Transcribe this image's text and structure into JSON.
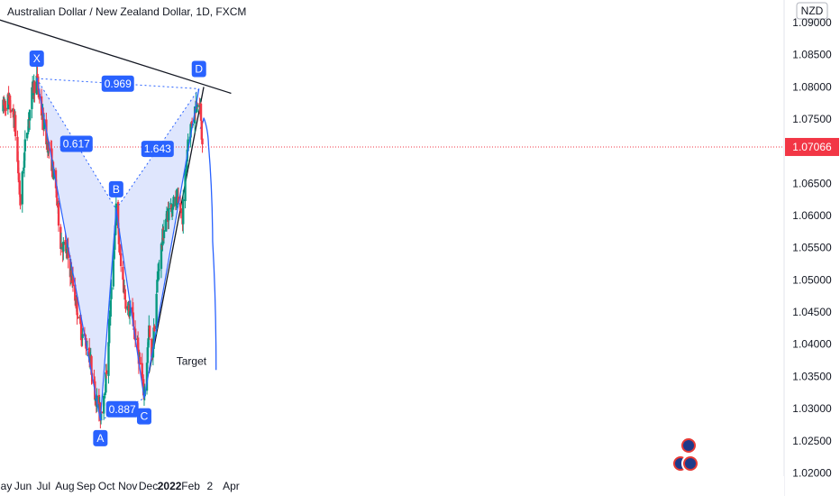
{
  "header": {
    "title": "Australian Dollar / New Zealand Dollar, 1D, FXCM",
    "currency": "NZD"
  },
  "chart_data": {
    "type": "candlestick",
    "title": "Australian Dollar / New Zealand Dollar, 1D, FXCM",
    "ylim": [
      1.0195,
      1.0935
    ],
    "xlabel": "",
    "ylabel": "NZD",
    "grid": false,
    "y_ticks": [
      "1.09000",
      "1.08500",
      "1.08000",
      "1.07500",
      "1.06500",
      "1.06000",
      "1.05500",
      "1.05000",
      "1.04500",
      "1.04000",
      "1.03500",
      "1.03000",
      "1.02500",
      "1.02000"
    ],
    "x_ticks": [
      {
        "label": "May",
        "date": "2021-05-01",
        "bold": false
      },
      {
        "label": "Jun",
        "date": "2021-06-01",
        "bold": false
      },
      {
        "label": "Jul",
        "date": "2021-07-01",
        "bold": false
      },
      {
        "label": "Aug",
        "date": "2021-08-01",
        "bold": false
      },
      {
        "label": "Sep",
        "date": "2021-09-01",
        "bold": false
      },
      {
        "label": "Oct",
        "date": "2021-10-01",
        "bold": false
      },
      {
        "label": "Nov",
        "date": "2021-11-01",
        "bold": false
      },
      {
        "label": "Dec",
        "date": "2021-12-01",
        "bold": false
      },
      {
        "label": "2022",
        "date": "2022-01-01",
        "bold": true
      },
      {
        "label": "Feb",
        "date": "2022-02-01",
        "bold": false
      },
      {
        "label": "2",
        "date": "2022-03-01",
        "bold": false
      },
      {
        "label": "Apr",
        "date": "2022-04-01",
        "bold": false
      }
    ],
    "last_price": {
      "value": 1.07066,
      "label": "1.07066",
      "color": "#f23645"
    },
    "colors": {
      "up": "#089981",
      "down": "#f23645",
      "pattern": "#2962ff",
      "fill": "#c9d6fb"
    },
    "price_path": [
      [
        "2021-05-01",
        1.0765
      ],
      [
        "2021-05-10",
        1.078
      ],
      [
        "2021-05-20",
        1.0745
      ],
      [
        "2021-05-28",
        1.062
      ],
      [
        "2021-06-05",
        1.072
      ],
      [
        "2021-06-15",
        1.0795
      ],
      [
        "2021-06-21",
        1.0812
      ],
      [
        "2021-06-28",
        1.076
      ],
      [
        "2021-07-05",
        1.072
      ],
      [
        "2021-07-12",
        1.069
      ],
      [
        "2021-07-20",
        1.063
      ],
      [
        "2021-07-26",
        1.056
      ],
      [
        "2021-08-05",
        1.054
      ],
      [
        "2021-08-15",
        1.048
      ],
      [
        "2021-08-25",
        1.042
      ],
      [
        "2021-09-05",
        1.039
      ],
      [
        "2021-09-15",
        1.032
      ],
      [
        "2021-09-22",
        1.029
      ],
      [
        "2021-09-30",
        1.0345
      ],
      [
        "2021-10-08",
        1.048
      ],
      [
        "2021-10-15",
        1.061
      ],
      [
        "2021-10-22",
        1.052
      ],
      [
        "2021-10-30",
        1.046
      ],
      [
        "2021-11-08",
        1.044
      ],
      [
        "2021-11-16",
        1.039
      ],
      [
        "2021-11-25",
        1.032
      ],
      [
        "2021-12-02",
        1.042
      ],
      [
        "2021-12-06",
        1.037
      ],
      [
        "2021-12-15",
        1.051
      ],
      [
        "2021-12-25",
        1.059
      ],
      [
        "2022-01-05",
        1.062
      ],
      [
        "2022-01-15",
        1.0615
      ],
      [
        "2022-01-20",
        1.06
      ],
      [
        "2022-01-28",
        1.072
      ],
      [
        "2022-02-06",
        1.076
      ],
      [
        "2022-02-13",
        1.0795
      ],
      [
        "2022-02-18",
        1.07066
      ]
    ],
    "harmonic_pattern": {
      "points": [
        {
          "label": "X",
          "date": "2021-06-21",
          "price": 1.0813
        },
        {
          "label": "A",
          "date": "2021-09-22",
          "price": 1.0282
        },
        {
          "label": "B",
          "date": "2021-10-15",
          "price": 1.061
        },
        {
          "label": "C",
          "date": "2021-11-25",
          "price": 1.0316
        },
        {
          "label": "D",
          "date": "2022-02-13",
          "price": 1.0797
        }
      ],
      "ratios": [
        {
          "value": "0.617",
          "from": "X",
          "to": "B"
        },
        {
          "value": "0.969",
          "from": "X",
          "to": "D"
        },
        {
          "value": "0.887",
          "from": "A",
          "to": "C"
        },
        {
          "value": "1.643",
          "from": "B",
          "to": "D"
        }
      ]
    },
    "trendlines": [
      {
        "name": "upper",
        "points": [
          [
            "2021-04-25",
            1.0905
          ],
          [
            "2022-04-01",
            1.079
          ]
        ]
      },
      {
        "name": "rising-wedge",
        "points": [
          [
            "2021-12-02",
            1.0355
          ],
          [
            "2022-02-20",
            1.08
          ]
        ]
      }
    ],
    "target_projection": {
      "label": "Target",
      "points": [
        [
          "2022-02-15",
          1.0735
        ],
        [
          "2022-02-20",
          1.0752
        ],
        [
          "2022-02-27",
          1.071
        ],
        [
          "2022-03-05",
          1.056
        ],
        [
          "2022-03-10",
          1.036
        ]
      ]
    }
  }
}
